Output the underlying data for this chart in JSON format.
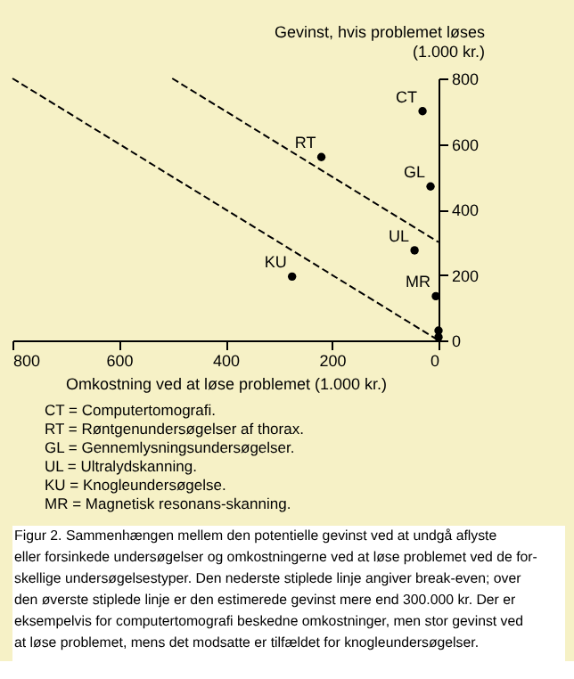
{
  "chart_data": {
    "type": "scatter",
    "xlabel": "Omkostning ved at løse problemet (1.000 kr.)",
    "ylabel": "Gevinst, hvis problemet løses\n(1.000 kr.)",
    "xlim": [
      800,
      0
    ],
    "ylim": [
      0,
      800
    ],
    "xticks": [
      800,
      600,
      400,
      200,
      0
    ],
    "yticks": [
      0,
      200,
      400,
      600,
      800
    ],
    "grid": false,
    "series": [
      {
        "type": "scatter",
        "color": "#000000",
        "marker": "circle",
        "x": [
          30,
          220,
          15,
          45,
          275,
          5,
          0,
          0
        ],
        "values": [
          700,
          560,
          470,
          275,
          195,
          135,
          30,
          10
        ]
      },
      {
        "type": "line",
        "color": "#000000",
        "line_style": "dashed",
        "x": [
          800,
          0
        ],
        "values": [
          800,
          0
        ]
      },
      {
        "type": "line",
        "color": "#000000",
        "line_style": "dashed",
        "x": [
          500,
          0
        ],
        "values": [
          800,
          300
        ]
      }
    ],
    "annotations": [
      {
        "text": "CT",
        "x": 30,
        "y": 700
      },
      {
        "text": "RT",
        "x": 220,
        "y": 560
      },
      {
        "text": "GL",
        "x": 15,
        "y": 470
      },
      {
        "text": "UL",
        "x": 45,
        "y": 275
      },
      {
        "text": "KU",
        "x": 275,
        "y": 195
      },
      {
        "text": "MR",
        "x": 5,
        "y": 135
      },
      "CT  = Computertomografi.\nRT  = Røntgenundersøgelser af thorax.\nGL  = Gennemlysningsundersøgelser.\nUL  = Ultralydskanning.\nKU  = Knogleundersøgelse.\nMR  = Magnetisk resonans-skanning.",
      "Figur 2. Sammenhængen mellem den potentielle gevinst ved at undgå aflyste\neller forsinkede undersøgelser og omkostningerne ved at løse problemet ved de for-\nskellige undersøgelsestyper. Den nederste stiplede linje angiver break-even; over\nden øverste stiplede linje er den estimerede gevinst mere end 300.000 kr. Der er\neksempelvis for computertomografi beskedne omkostninger, men stor gevinst ved\nat løse problemet, mens det modsatte er tilfældet for knogleundersøgelser."
    ]
  }
}
